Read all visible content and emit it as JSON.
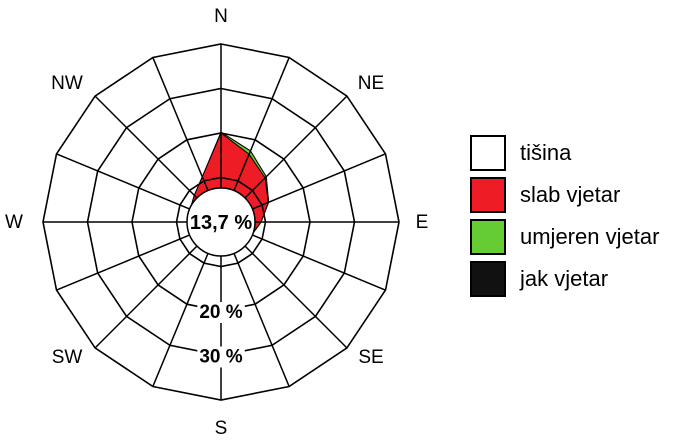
{
  "chart_data": {
    "type": "wind-rose",
    "directions": [
      "N",
      "NE",
      "E",
      "SE",
      "S",
      "SW",
      "W",
      "NW"
    ],
    "sectors": 16,
    "sector_angles_deg": [
      0,
      22.5,
      45,
      67.5,
      90,
      112.5,
      135,
      157.5,
      180,
      202.5,
      225,
      247.5,
      270,
      292.5,
      315,
      337.5
    ],
    "calm_label": "13,7 %",
    "ring_labels": [
      "20 %",
      "30 %"
    ],
    "rings_percent": [
      10,
      20,
      30,
      40
    ],
    "r_max_percent": 40,
    "series": [
      {
        "name": "slab vjetar",
        "color": "#ee1c24",
        "values": [
          20.0,
          16.5,
          14.0,
          11.5,
          9.0,
          7.5,
          7.0,
          6.5,
          7.5,
          7.5,
          7.0,
          6.5,
          7.0,
          7.5,
          8.5,
          11.0
        ]
      },
      {
        "name": "umjeren vjetar",
        "color": "#66cc33",
        "values": [
          0.2,
          0.8,
          0.4,
          0.1,
          0,
          0,
          0,
          0,
          0,
          0,
          0,
          0,
          0,
          0,
          0,
          0
        ]
      },
      {
        "name": "jak vjetar",
        "color": "#111111",
        "values": [
          0,
          0,
          0,
          0,
          0,
          0,
          0,
          0,
          0,
          0,
          0,
          0,
          0,
          0,
          0,
          0
        ]
      }
    ]
  },
  "legend": {
    "items": [
      {
        "label": "tišina",
        "color": "#ffffff"
      },
      {
        "label": "slab vjetar",
        "color": "#ee1c24"
      },
      {
        "label": "umjeren vjetar",
        "color": "#66cc33"
      },
      {
        "label": "jak vjetar",
        "color": "#111111"
      }
    ]
  }
}
